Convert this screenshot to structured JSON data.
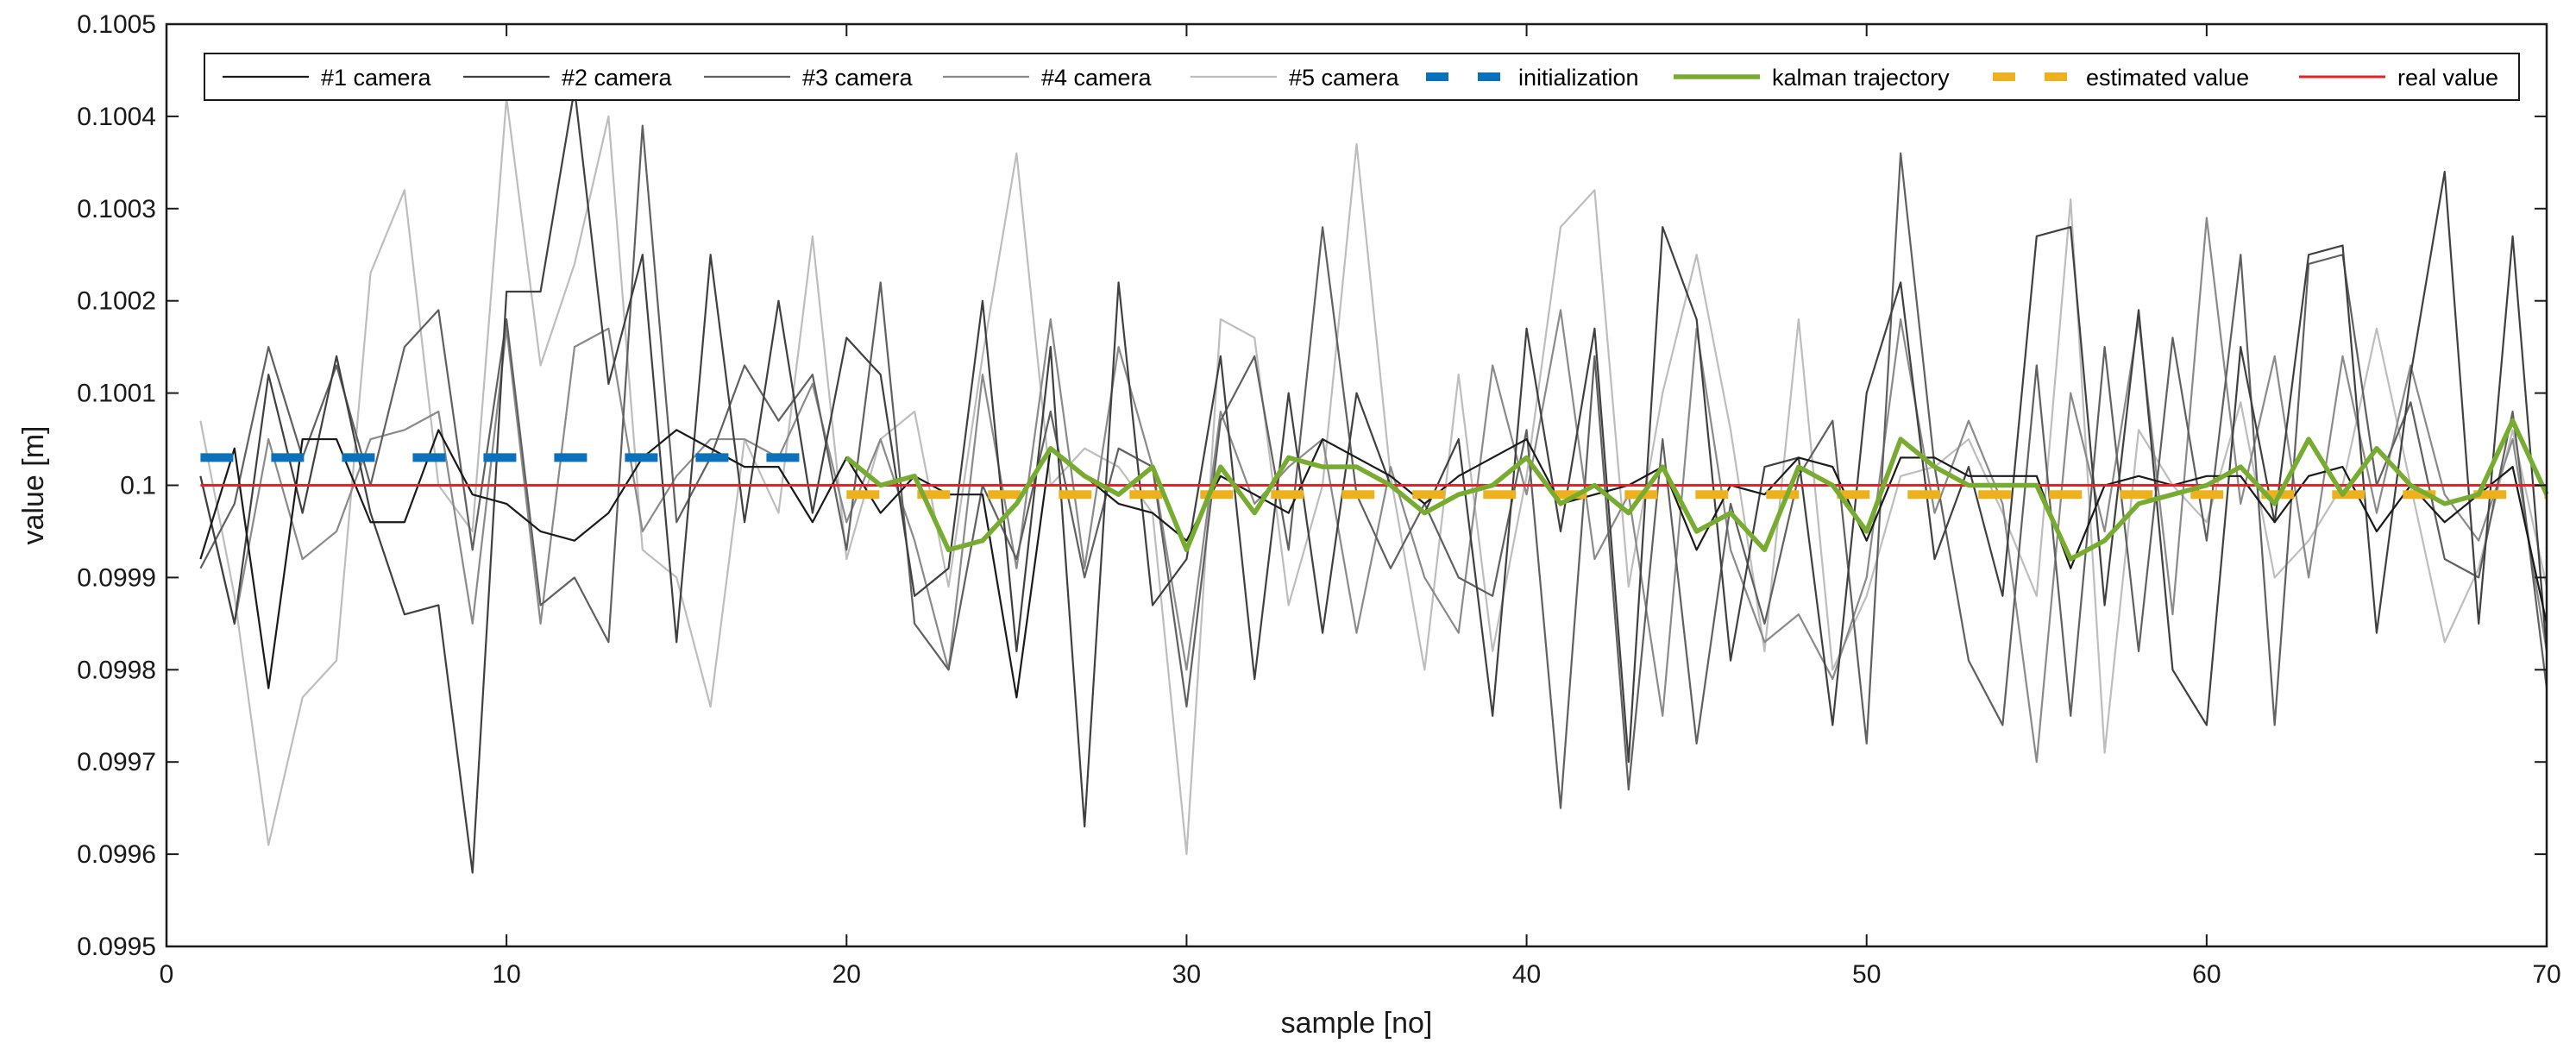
{
  "chart_data": {
    "type": "line",
    "title": "",
    "xlabel": "sample [no]",
    "ylabel": "value [m]",
    "xlim": [
      0,
      70
    ],
    "ylim": [
      0.0995,
      0.1005
    ],
    "xticks": [
      0,
      10,
      20,
      30,
      40,
      50,
      60,
      70
    ],
    "xtick_labels": [
      "0",
      "10",
      "20",
      "30",
      "40",
      "50",
      "60",
      "70"
    ],
    "yticks": [
      0.0995,
      0.0996,
      0.0997,
      0.0998,
      0.0999,
      0.1,
      0.1001,
      0.1002,
      0.1003,
      0.1004,
      0.1005
    ],
    "ytick_labels": [
      "0.0995",
      "0.0996",
      "0.0997",
      "0.0998",
      "0.0999",
      "0.1",
      "0.1001",
      "0.1002",
      "0.1003",
      "0.1004",
      "0.1005"
    ],
    "grid": false,
    "legend_position": "top",
    "series": [
      {
        "name": "#1 camera",
        "color": "#1a1a1a",
        "style": "solid",
        "x": [
          1,
          2,
          3,
          4,
          5,
          6,
          7,
          8,
          9,
          10,
          11,
          12,
          13,
          14,
          15,
          16,
          17,
          18,
          19,
          20,
          21,
          22,
          23,
          24,
          25,
          26,
          27,
          28,
          29,
          30,
          31,
          32,
          33,
          34,
          35,
          36,
          37,
          38,
          39,
          40,
          41,
          42,
          43,
          44,
          45,
          46,
          47,
          48,
          49,
          50,
          51,
          52,
          53,
          54,
          55,
          56,
          57,
          58,
          59,
          60,
          61,
          62,
          63,
          64,
          65,
          66,
          67,
          68,
          69,
          70
        ],
        "values": [
          0.09992,
          0.10004,
          0.09978,
          0.10005,
          0.10005,
          0.09996,
          0.09996,
          0.10006,
          0.09999,
          0.09998,
          0.09995,
          0.09994,
          0.09997,
          0.10003,
          0.10006,
          0.10004,
          0.10002,
          0.10002,
          0.09996,
          0.10003,
          0.09997,
          0.10001,
          0.09999,
          0.09999,
          0.09977,
          0.10004,
          0.10001,
          0.09998,
          0.09997,
          0.09994,
          0.10001,
          0.09999,
          0.09997,
          0.10005,
          0.10003,
          0.10001,
          0.09998,
          0.10001,
          0.10003,
          0.10005,
          0.09998,
          0.09999,
          0.1,
          0.10002,
          0.09993,
          0.1,
          0.09999,
          0.10003,
          0.10002,
          0.09994,
          0.10003,
          0.10003,
          0.10001,
          0.10001,
          0.10001,
          0.09991,
          0.1,
          0.10001,
          0.1,
          0.10001,
          0.10001,
          0.09996,
          0.10001,
          0.10002,
          0.09995,
          0.1,
          0.09996,
          0.09999,
          0.10002,
          0.09985
        ]
      },
      {
        "name": "#2 camera",
        "color": "#404040",
        "style": "solid",
        "x": [
          1,
          2,
          3,
          4,
          5,
          6,
          7,
          8,
          9,
          10,
          11,
          12,
          13,
          14,
          15,
          16,
          17,
          18,
          19,
          20,
          21,
          22,
          23,
          24,
          25,
          26,
          27,
          28,
          29,
          30,
          31,
          32,
          33,
          34,
          35,
          36,
          37,
          38,
          39,
          40,
          41,
          42,
          43,
          44,
          45,
          46,
          47,
          48,
          49,
          50,
          51,
          52,
          53,
          54,
          55,
          56,
          57,
          58,
          59,
          60,
          61,
          62,
          63,
          64,
          65,
          66,
          67,
          68,
          69,
          70
        ],
        "values": [
          0.10001,
          0.09985,
          0.10012,
          0.09997,
          0.10014,
          0.09997,
          0.09986,
          0.09987,
          0.09958,
          0.10021,
          0.10021,
          0.10043,
          0.10011,
          0.10025,
          0.09983,
          0.10025,
          0.09996,
          0.1002,
          0.09997,
          0.10016,
          0.10012,
          0.09988,
          0.09991,
          0.1002,
          0.09982,
          0.10015,
          0.09963,
          0.10022,
          0.09987,
          0.09992,
          0.10014,
          0.09979,
          0.1001,
          0.09984,
          0.1001,
          0.1,
          0.09997,
          0.10005,
          0.09975,
          0.10017,
          0.09995,
          0.10017,
          0.0997,
          0.10028,
          0.10018,
          0.09981,
          0.10002,
          0.10003,
          0.09974,
          0.1001,
          0.10022,
          0.09992,
          0.10002,
          0.09988,
          0.10027,
          0.10028,
          0.09987,
          0.10019,
          0.0998,
          0.09974,
          0.10015,
          0.09996,
          0.10025,
          0.10026,
          0.09984,
          0.10012,
          0.10034,
          0.09985,
          0.10027,
          0.09982
        ]
      },
      {
        "name": "#3 camera",
        "color": "#606060",
        "style": "solid",
        "x": [
          1,
          2,
          3,
          4,
          5,
          6,
          7,
          8,
          9,
          10,
          11,
          12,
          13,
          14,
          15,
          16,
          17,
          18,
          19,
          20,
          21,
          22,
          23,
          24,
          25,
          26,
          27,
          28,
          29,
          30,
          31,
          32,
          33,
          34,
          35,
          36,
          37,
          38,
          39,
          40,
          41,
          42,
          43,
          44,
          45,
          46,
          47,
          48,
          49,
          50,
          51,
          52,
          53,
          54,
          55,
          56,
          57,
          58,
          59,
          60,
          61,
          62,
          63,
          64,
          65,
          66,
          67,
          68,
          69,
          70
        ],
        "values": [
          0.09991,
          0.09998,
          0.10015,
          0.10003,
          0.10013,
          0.1,
          0.10015,
          0.10019,
          0.09993,
          0.10018,
          0.09987,
          0.0999,
          0.09983,
          0.10039,
          0.09996,
          0.10003,
          0.10013,
          0.10007,
          0.10012,
          0.09993,
          0.10022,
          0.09985,
          0.0998,
          0.1,
          0.09992,
          0.10008,
          0.0999,
          0.10004,
          0.10002,
          0.09976,
          0.10007,
          0.10014,
          0.09993,
          0.10028,
          0.09999,
          0.09991,
          0.09998,
          0.0999,
          0.09988,
          0.10006,
          0.09965,
          0.10014,
          0.09967,
          0.10005,
          0.09972,
          0.09998,
          0.09985,
          0.10001,
          0.10007,
          0.09972,
          0.10036,
          0.10002,
          0.09981,
          0.09974,
          0.10013,
          0.09975,
          0.10015,
          0.09982,
          0.10016,
          0.09994,
          0.10025,
          0.09974,
          0.10024,
          0.10025,
          0.1,
          0.10009,
          0.09992,
          0.0999,
          0.10008,
          0.09978
        ]
      },
      {
        "name": "#4 camera",
        "color": "#8a8a8a",
        "style": "solid",
        "x": [
          1,
          2,
          3,
          4,
          5,
          6,
          7,
          8,
          9,
          10,
          11,
          12,
          13,
          14,
          15,
          16,
          17,
          18,
          19,
          20,
          21,
          22,
          23,
          24,
          25,
          26,
          27,
          28,
          29,
          30,
          31,
          32,
          33,
          34,
          35,
          36,
          37,
          38,
          39,
          40,
          41,
          42,
          43,
          44,
          45,
          46,
          47,
          48,
          49,
          50,
          51,
          52,
          53,
          54,
          55,
          56,
          57,
          58,
          59,
          60,
          61,
          62,
          63,
          64,
          65,
          66,
          67,
          68,
          69,
          70
        ],
        "values": [
          0.10001,
          0.09985,
          0.10005,
          0.09992,
          0.09995,
          0.10005,
          0.10006,
          0.10008,
          0.09985,
          0.10017,
          0.09985,
          0.10015,
          0.10017,
          0.09995,
          0.10001,
          0.10005,
          0.10005,
          0.10003,
          0.10011,
          0.09996,
          0.10005,
          0.09994,
          0.0998,
          0.10012,
          0.09991,
          0.10018,
          0.09991,
          0.10015,
          0.10002,
          0.0998,
          0.10008,
          0.09998,
          0.10002,
          0.10005,
          0.09984,
          0.10002,
          0.0999,
          0.09984,
          0.10013,
          0.09999,
          0.10019,
          0.09992,
          0.09999,
          0.09975,
          0.10017,
          0.09993,
          0.09983,
          0.09986,
          0.09979,
          0.0999,
          0.10018,
          0.09997,
          0.10007,
          0.09998,
          0.0997,
          0.1001,
          0.09995,
          0.10018,
          0.09986,
          0.10029,
          0.09998,
          0.10014,
          0.0999,
          0.10014,
          0.09997,
          0.10013,
          0.09999,
          0.09994,
          0.10005,
          0.09982
        ]
      },
      {
        "name": "#5 camera",
        "color": "#bdbdbd",
        "style": "solid",
        "x": [
          1,
          2,
          3,
          4,
          5,
          6,
          7,
          8,
          9,
          10,
          11,
          12,
          13,
          14,
          15,
          16,
          17,
          18,
          19,
          20,
          21,
          22,
          23,
          24,
          25,
          26,
          27,
          28,
          29,
          30,
          31,
          32,
          33,
          34,
          35,
          36,
          37,
          38,
          39,
          40,
          41,
          42,
          43,
          44,
          45,
          46,
          47,
          48,
          49,
          50,
          51,
          52,
          53,
          54,
          55,
          56,
          57,
          58,
          59,
          60,
          61,
          62,
          63,
          64,
          65,
          66,
          67,
          68,
          69,
          70
        ],
        "values": [
          0.10007,
          0.09988,
          0.09961,
          0.09977,
          0.09981,
          0.10023,
          0.10032,
          0.1,
          0.09995,
          0.10042,
          0.10013,
          0.10024,
          0.1004,
          0.09993,
          0.0999,
          0.09976,
          0.10005,
          0.09997,
          0.10027,
          0.09992,
          0.10005,
          0.10008,
          0.09989,
          0.10014,
          0.10036,
          0.1,
          0.10004,
          0.10002,
          0.09997,
          0.0996,
          0.10018,
          0.10016,
          0.09987,
          0.1,
          0.10037,
          0.10001,
          0.0998,
          0.10012,
          0.09982,
          0.10001,
          0.10028,
          0.10032,
          0.09989,
          0.1001,
          0.10025,
          0.10006,
          0.09982,
          0.10018,
          0.0998,
          0.09988,
          0.10001,
          0.10002,
          0.10005,
          0.09997,
          0.09988,
          0.10031,
          0.09971,
          0.10006,
          0.1,
          0.09996,
          0.10009,
          0.0999,
          0.09994,
          0.1,
          0.10017,
          0.1,
          0.09983,
          0.09991,
          0.10006,
          0.09989
        ]
      },
      {
        "name": "initialization",
        "color": "#0a72bd",
        "style": "dashed",
        "x": [
          1,
          19
        ],
        "values": [
          0.10003,
          0.10003
        ]
      },
      {
        "name": "kalman trajectory",
        "color": "#77ac30",
        "style": "solid",
        "x": [
          20,
          21,
          22,
          23,
          24,
          25,
          26,
          27,
          28,
          29,
          30,
          31,
          32,
          33,
          34,
          35,
          36,
          37,
          38,
          39,
          40,
          41,
          42,
          43,
          44,
          45,
          46,
          47,
          48,
          49,
          50,
          51,
          52,
          53,
          54,
          55,
          56,
          57,
          58,
          59,
          60,
          61,
          62,
          63,
          64,
          65,
          66,
          67,
          68,
          69,
          70
        ],
        "values": [
          0.10003,
          0.1,
          0.10001,
          0.09993,
          0.09994,
          0.09998,
          0.10004,
          0.10001,
          0.09999,
          0.10002,
          0.09993,
          0.10002,
          0.09997,
          0.10003,
          0.10002,
          0.10002,
          0.1,
          0.09997,
          0.09999,
          0.1,
          0.10003,
          0.09998,
          0.1,
          0.09997,
          0.10002,
          0.09995,
          0.09997,
          0.09993,
          0.10002,
          0.1,
          0.09995,
          0.10005,
          0.10002,
          0.1,
          0.1,
          0.1,
          0.09992,
          0.09994,
          0.09998,
          0.09999,
          0.1,
          0.10002,
          0.09998,
          0.10005,
          0.09999,
          0.10004,
          0.1,
          0.09998,
          0.09999,
          0.10007,
          0.09999
        ]
      },
      {
        "name": "estimated value",
        "color": "#edb120",
        "style": "dashed",
        "x": [
          20,
          70
        ],
        "values": [
          0.09999,
          0.09999
        ]
      },
      {
        "name": "real value",
        "color": "#e8202a",
        "style": "solid",
        "x": [
          1,
          70
        ],
        "values": [
          0.1,
          0.1
        ]
      }
    ]
  }
}
